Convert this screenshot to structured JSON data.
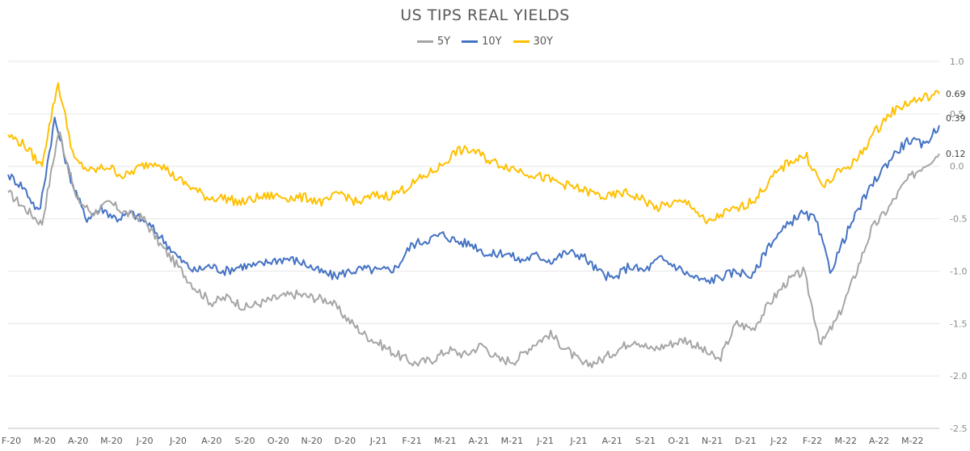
{
  "chart_data": {
    "type": "line",
    "title": "US TIPS REAL YIELDS",
    "xlabel": "",
    "ylabel": "",
    "ylim": [
      -2.5,
      1.0
    ],
    "yticks": [
      "1.0",
      "0.5",
      "0.0",
      "-0.5",
      "-1.0",
      "-1.5",
      "-2.0",
      "-2.5"
    ],
    "x_tick_labels": [
      "F-20",
      "M-20",
      "A-20",
      "M-20",
      "J-20",
      "J-20",
      "A-20",
      "S-20",
      "O-20",
      "N-20",
      "D-20",
      "J-21",
      "F-21",
      "M-21",
      "A-21",
      "M-21",
      "J-21",
      "J-21",
      "A-21",
      "S-21",
      "O-21",
      "N-21",
      "D-21",
      "J-22",
      "F-22",
      "M-22",
      "A-22",
      "M-22"
    ],
    "grid": true,
    "legend_position": "top-center",
    "series": [
      {
        "name": "5Y",
        "color": "#a5a5a5",
        "end_label": "0.12",
        "values": [
          -0.25,
          -0.4,
          -0.55,
          0.35,
          -0.3,
          -0.45,
          -0.35,
          -0.45,
          -0.5,
          -0.75,
          -0.95,
          -1.15,
          -1.3,
          -1.25,
          -1.35,
          -1.3,
          -1.25,
          -1.22,
          -1.25,
          -1.28,
          -1.45,
          -1.6,
          -1.7,
          -1.8,
          -1.88,
          -1.85,
          -1.75,
          -1.8,
          -1.7,
          -1.85,
          -1.85,
          -1.7,
          -1.6,
          -1.75,
          -1.9,
          -1.85,
          -1.75,
          -1.65,
          -1.75,
          -1.7,
          -1.65,
          -1.75,
          -1.85,
          -1.5,
          -1.55,
          -1.3,
          -1.1,
          -1.0,
          -1.7,
          -1.45,
          -1.05,
          -0.6,
          -0.4,
          -0.15,
          0.0,
          0.12
        ]
      },
      {
        "name": "10Y",
        "color": "#4472c4",
        "end_label": "0.39",
        "values": [
          -0.08,
          -0.2,
          -0.45,
          0.45,
          -0.1,
          -0.5,
          -0.4,
          -0.5,
          -0.45,
          -0.55,
          -0.7,
          -0.88,
          -1.0,
          -0.95,
          -1.0,
          -0.95,
          -0.95,
          -0.9,
          -0.88,
          -0.92,
          -1.0,
          -1.05,
          -1.0,
          -0.98,
          -1.0,
          -0.97,
          -0.75,
          -0.7,
          -0.65,
          -0.72,
          -0.75,
          -0.85,
          -0.82,
          -0.9,
          -0.85,
          -0.9,
          -0.82,
          -0.85,
          -1.0,
          -1.08,
          -0.95,
          -1.0,
          -0.88,
          -0.95,
          -1.05,
          -1.1,
          -1.05,
          -1.0,
          -1.05,
          -0.75,
          -0.6,
          -0.45,
          -0.5,
          -1.0,
          -0.65,
          -0.35,
          -0.1,
          0.1,
          0.25,
          0.2,
          0.39
        ]
      },
      {
        "name": "30Y",
        "color": "#ffc000",
        "end_label": "0.69",
        "values": [
          0.3,
          0.2,
          0.0,
          0.8,
          0.05,
          -0.05,
          0.0,
          -0.1,
          0.0,
          0.05,
          -0.1,
          -0.2,
          -0.3,
          -0.3,
          -0.35,
          -0.3,
          -0.28,
          -0.3,
          -0.3,
          -0.35,
          -0.25,
          -0.35,
          -0.28,
          -0.28,
          -0.2,
          -0.1,
          0.0,
          0.15,
          0.15,
          0.05,
          0.0,
          -0.05,
          -0.1,
          -0.15,
          -0.2,
          -0.25,
          -0.3,
          -0.25,
          -0.3,
          -0.4,
          -0.35,
          -0.35,
          -0.55,
          -0.45,
          -0.4,
          -0.3,
          -0.1,
          0.05,
          0.1,
          -0.2,
          -0.05,
          0.05,
          0.3,
          0.5,
          0.6,
          0.65,
          0.69
        ]
      }
    ]
  }
}
